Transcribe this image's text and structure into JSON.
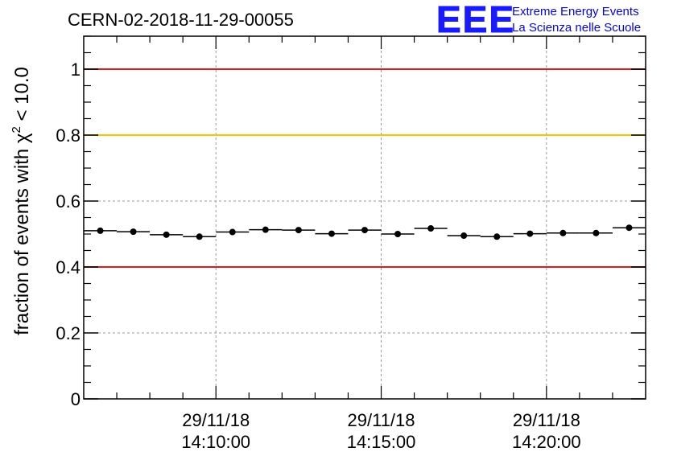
{
  "chart_data": {
    "type": "scatter",
    "title": "CERN-02-2018-11-29-00055",
    "logo": {
      "mark": "EEE",
      "line1": "Extreme Energy Events",
      "line2": "La Scienza nelle Scuole"
    },
    "ylabel": {
      "prefix": "fraction of events with ",
      "chi": "χ",
      "sup": "2",
      "suffix": " < 10.0"
    },
    "ylim": [
      0,
      1.1
    ],
    "xlim": [
      0,
      17
    ],
    "y_ticks": [
      {
        "value": 0,
        "label": "0"
      },
      {
        "value": 0.2,
        "label": "0.2"
      },
      {
        "value": 0.4,
        "label": "0.4"
      },
      {
        "value": 0.6,
        "label": "0.6"
      },
      {
        "value": 0.8,
        "label": "0.8"
      },
      {
        "value": 1,
        "label": "1"
      }
    ],
    "x_ticks": [
      {
        "value": 4,
        "date": "29/11/18",
        "time": "14:10:00"
      },
      {
        "value": 9,
        "date": "29/11/18",
        "time": "14:15:00"
      },
      {
        "value": 14,
        "date": "29/11/18",
        "time": "14:20:00"
      }
    ],
    "reference_lines": [
      {
        "value": 1.0,
        "color": "#e31a1c"
      },
      {
        "value": 0.8,
        "color": "#ffc000"
      },
      {
        "value": 0.4,
        "color": "#e31a1c"
      }
    ],
    "grid": true,
    "series": [
      {
        "name": "fraction",
        "x": [
          0.5,
          1.5,
          2.5,
          3.5,
          4.5,
          5.5,
          6.5,
          7.5,
          8.5,
          9.5,
          10.5,
          11.5,
          12.5,
          13.5,
          14.5,
          15.5,
          16.5
        ],
        "values": [
          0.51,
          0.507,
          0.498,
          0.492,
          0.506,
          0.513,
          0.512,
          0.501,
          0.512,
          0.5,
          0.517,
          0.495,
          0.492,
          0.501,
          0.503,
          0.503,
          0.519
        ],
        "x_half_width": 0.5,
        "y_error": 0.008
      }
    ]
  }
}
